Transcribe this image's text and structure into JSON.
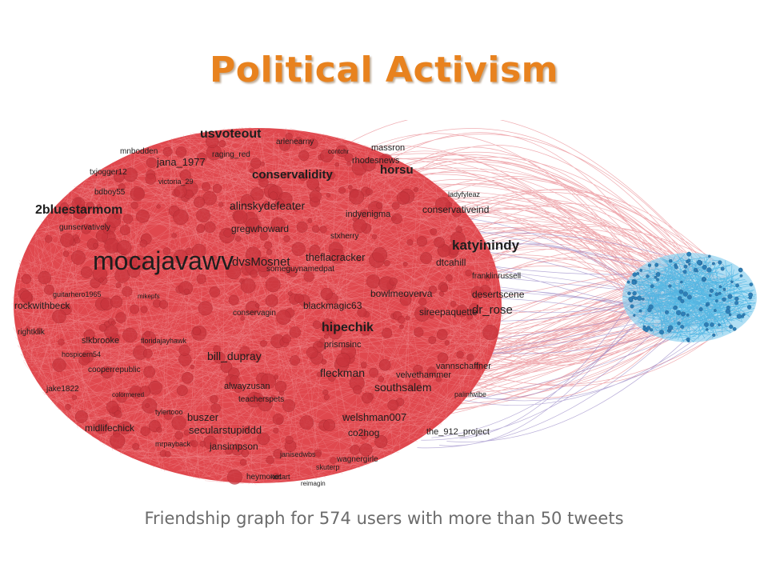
{
  "slide": {
    "title": "Political Activism",
    "caption": "Friendship graph for 574 users with more than 50 tweets"
  },
  "colors": {
    "title": "#e8821e",
    "red_cluster": "#e0484e",
    "red_node": "#c8343c",
    "blue_cluster": "#3aaee0",
    "blue_node": "#2d7fb8",
    "cross_edge": "#e36a72",
    "caption": "#6b6b6b"
  },
  "graph": {
    "labels": [
      {
        "text": "usvoteout",
        "size": 16,
        "bold": true
      },
      {
        "text": "arlenearny",
        "size": 10
      },
      {
        "text": "massron",
        "size": 11
      },
      {
        "text": "mnbodden",
        "size": 10
      },
      {
        "text": "raging_red",
        "size": 10
      },
      {
        "text": "contchr",
        "size": 8
      },
      {
        "text": "rhodesnews",
        "size": 11
      },
      {
        "text": "jana_1977",
        "size": 13
      },
      {
        "text": "txjogger12",
        "size": 10
      },
      {
        "text": "horsu",
        "size": 15,
        "bold": true
      },
      {
        "text": "conservalidity",
        "size": 15,
        "bold": true
      },
      {
        "text": "bdboy55",
        "size": 10
      },
      {
        "text": "victoria_29",
        "size": 9
      },
      {
        "text": "ladyfyleaz",
        "size": 9
      },
      {
        "text": "2bluestarmom",
        "size": 16,
        "bold": true
      },
      {
        "text": "alinskydefeater",
        "size": 14
      },
      {
        "text": "indyenigma",
        "size": 11
      },
      {
        "text": "conservativeind",
        "size": 12
      },
      {
        "text": "gunservatively",
        "size": 10
      },
      {
        "text": "gregwhoward",
        "size": 12
      },
      {
        "text": "stxherry",
        "size": 10
      },
      {
        "text": "katyinindy",
        "size": 17,
        "bold": true
      },
      {
        "text": "mocajavawv",
        "size": 32
      },
      {
        "text": "dvsMosnet",
        "size": 15
      },
      {
        "text": "dtcahill",
        "size": 12
      },
      {
        "text": "someguynamedpat",
        "size": 10
      },
      {
        "text": "theflacracker",
        "size": 13
      },
      {
        "text": "franklinrussell",
        "size": 10
      },
      {
        "text": "guitarhero1965",
        "size": 9
      },
      {
        "text": "mikepfs",
        "size": 8
      },
      {
        "text": "bowlmeoverva",
        "size": 12
      },
      {
        "text": "desertscene",
        "size": 12
      },
      {
        "text": "rockwithbeck",
        "size": 12
      },
      {
        "text": "blackmagic63",
        "size": 12
      },
      {
        "text": "dr_rose",
        "size": 15
      },
      {
        "text": "conservagin",
        "size": 10
      },
      {
        "text": "sireepaquette",
        "size": 12
      },
      {
        "text": "rightklik",
        "size": 10
      },
      {
        "text": "hipechik",
        "size": 16,
        "bold": true
      },
      {
        "text": "slkbrooke",
        "size": 11
      },
      {
        "text": "prismsinc",
        "size": 11
      },
      {
        "text": "floridajayhawk",
        "size": 9
      },
      {
        "text": "bill_dupray",
        "size": 14
      },
      {
        "text": "vannschaffner",
        "size": 11
      },
      {
        "text": "hospicern54",
        "size": 9
      },
      {
        "text": "fleckman",
        "size": 14
      },
      {
        "text": "cooperrepublic",
        "size": 10
      },
      {
        "text": "velvethammer",
        "size": 11
      },
      {
        "text": "jake1822",
        "size": 10
      },
      {
        "text": "alwayzusan",
        "size": 11
      },
      {
        "text": "teacherspets",
        "size": 10
      },
      {
        "text": "southsalem",
        "size": 14
      },
      {
        "text": "palinfwibe",
        "size": 9
      },
      {
        "text": "colormered",
        "size": 8
      },
      {
        "text": "tylertooo",
        "size": 9
      },
      {
        "text": "buszer",
        "size": 13
      },
      {
        "text": "welshman007",
        "size": 13
      },
      {
        "text": "midlifechick",
        "size": 12
      },
      {
        "text": "secularstupiddd",
        "size": 13
      },
      {
        "text": "co2hog",
        "size": 12
      },
      {
        "text": "the_912_project",
        "size": 11
      },
      {
        "text": "mrpayback",
        "size": 9
      },
      {
        "text": "jansimpson",
        "size": 12
      },
      {
        "text": "janisedwbs",
        "size": 9
      },
      {
        "text": "wagnergirle",
        "size": 10
      },
      {
        "text": "skuterp",
        "size": 9
      },
      {
        "text": "kocart",
        "size": 9
      },
      {
        "text": "heymonet",
        "size": 10
      },
      {
        "text": "reimagin",
        "size": 8
      },
      {
        "text": "uspace123",
        "size": 10
      }
    ]
  }
}
